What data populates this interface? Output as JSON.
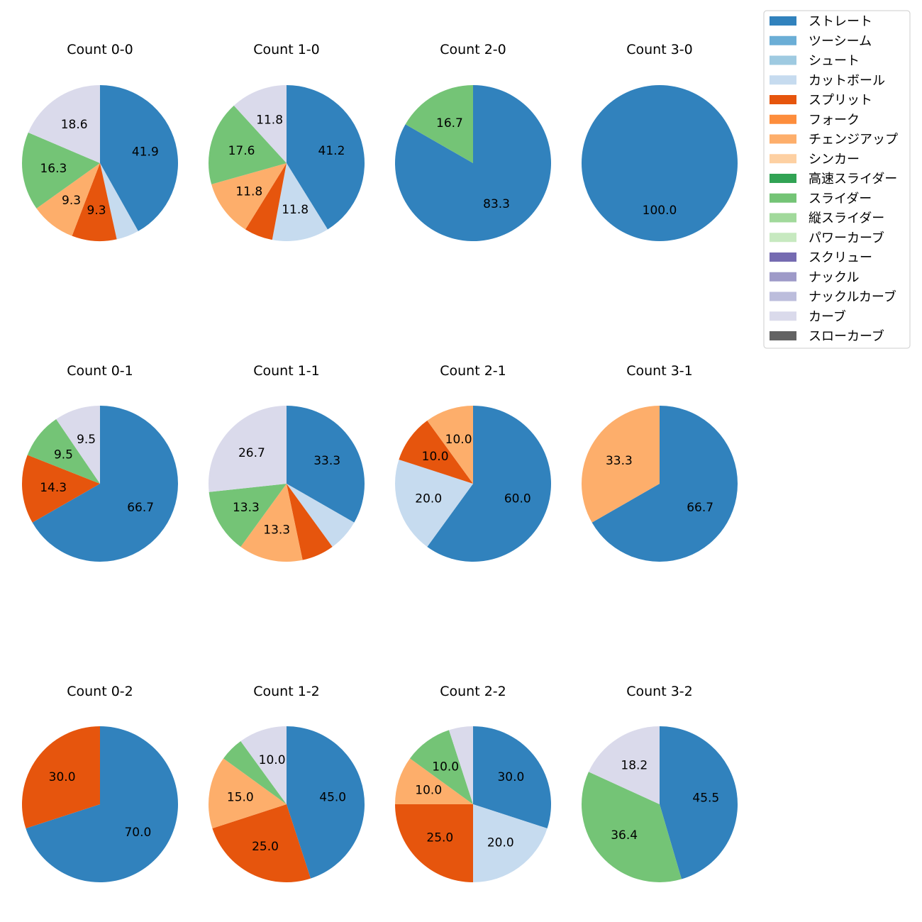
{
  "chart_data": {
    "type": "pie",
    "legend": {
      "location": "top-right",
      "items": [
        {
          "name": "ストレート",
          "color": "#3182bd"
        },
        {
          "name": "ツーシーム",
          "color": "#6baed6"
        },
        {
          "name": "シュート",
          "color": "#9ecae1"
        },
        {
          "name": "カットボール",
          "color": "#c6dbef"
        },
        {
          "name": "スプリット",
          "color": "#e6550d"
        },
        {
          "name": "フォーク",
          "color": "#fd8d3c"
        },
        {
          "name": "チェンジアップ",
          "color": "#fdae6b"
        },
        {
          "name": "シンカー",
          "color": "#fdd0a2"
        },
        {
          "name": "高速スライダー",
          "color": "#31a354"
        },
        {
          "name": "スライダー",
          "color": "#74c476"
        },
        {
          "name": "縦スライダー",
          "color": "#a1d99b"
        },
        {
          "name": "パワーカーブ",
          "color": "#c7e9c0"
        },
        {
          "name": "スクリュー",
          "color": "#756bb1"
        },
        {
          "name": "ナックル",
          "color": "#9e9ac8"
        },
        {
          "name": "ナックルカーブ",
          "color": "#bcbddc"
        },
        {
          "name": "カーブ",
          "color": "#dadaeb"
        },
        {
          "name": "スローカーブ",
          "color": "#636363"
        }
      ]
    },
    "pies": [
      {
        "title": "Count 0-0",
        "slices": [
          {
            "pitch": "ストレート",
            "value": 41.9,
            "label": "41.9"
          },
          {
            "pitch": "カットボール",
            "value": 4.7,
            "label": ""
          },
          {
            "pitch": "スプリット",
            "value": 9.3,
            "label": "9.3"
          },
          {
            "pitch": "チェンジアップ",
            "value": 9.3,
            "label": "9.3"
          },
          {
            "pitch": "スライダー",
            "value": 16.3,
            "label": "16.3"
          },
          {
            "pitch": "カーブ",
            "value": 18.6,
            "label": "18.6"
          }
        ]
      },
      {
        "title": "Count 1-0",
        "slices": [
          {
            "pitch": "ストレート",
            "value": 41.2,
            "label": "41.2"
          },
          {
            "pitch": "カットボール",
            "value": 11.8,
            "label": "11.8"
          },
          {
            "pitch": "スプリット",
            "value": 5.9,
            "label": ""
          },
          {
            "pitch": "チェンジアップ",
            "value": 11.8,
            "label": "11.8"
          },
          {
            "pitch": "スライダー",
            "value": 17.6,
            "label": "17.6"
          },
          {
            "pitch": "カーブ",
            "value": 11.8,
            "label": "11.8"
          }
        ]
      },
      {
        "title": "Count 2-0",
        "slices": [
          {
            "pitch": "ストレート",
            "value": 83.3,
            "label": "83.3"
          },
          {
            "pitch": "スライダー",
            "value": 16.7,
            "label": "16.7"
          }
        ]
      },
      {
        "title": "Count 3-0",
        "slices": [
          {
            "pitch": "ストレート",
            "value": 100.0,
            "label": "100.0"
          }
        ]
      },
      {
        "title": "Count 0-1",
        "slices": [
          {
            "pitch": "ストレート",
            "value": 66.7,
            "label": "66.7"
          },
          {
            "pitch": "スプリット",
            "value": 14.3,
            "label": "14.3"
          },
          {
            "pitch": "スライダー",
            "value": 9.5,
            "label": "9.5"
          },
          {
            "pitch": "カーブ",
            "value": 9.5,
            "label": "9.5"
          }
        ]
      },
      {
        "title": "Count 1-1",
        "slices": [
          {
            "pitch": "ストレート",
            "value": 33.3,
            "label": "33.3"
          },
          {
            "pitch": "カットボール",
            "value": 6.7,
            "label": ""
          },
          {
            "pitch": "スプリット",
            "value": 6.7,
            "label": ""
          },
          {
            "pitch": "チェンジアップ",
            "value": 13.3,
            "label": "13.3"
          },
          {
            "pitch": "スライダー",
            "value": 13.3,
            "label": "13.3"
          },
          {
            "pitch": "カーブ",
            "value": 26.7,
            "label": "26.7"
          }
        ]
      },
      {
        "title": "Count 2-1",
        "slices": [
          {
            "pitch": "ストレート",
            "value": 60.0,
            "label": "60.0"
          },
          {
            "pitch": "カットボール",
            "value": 20.0,
            "label": "20.0"
          },
          {
            "pitch": "スプリット",
            "value": 10.0,
            "label": "10.0"
          },
          {
            "pitch": "チェンジアップ",
            "value": 10.0,
            "label": "10.0"
          }
        ]
      },
      {
        "title": "Count 3-1",
        "slices": [
          {
            "pitch": "ストレート",
            "value": 66.7,
            "label": "66.7"
          },
          {
            "pitch": "チェンジアップ",
            "value": 33.3,
            "label": "33.3"
          }
        ]
      },
      {
        "title": "Count 0-2",
        "slices": [
          {
            "pitch": "ストレート",
            "value": 70.0,
            "label": "70.0"
          },
          {
            "pitch": "スプリット",
            "value": 30.0,
            "label": "30.0"
          }
        ]
      },
      {
        "title": "Count 1-2",
        "slices": [
          {
            "pitch": "ストレート",
            "value": 45.0,
            "label": "45.0"
          },
          {
            "pitch": "スプリット",
            "value": 25.0,
            "label": "25.0"
          },
          {
            "pitch": "チェンジアップ",
            "value": 15.0,
            "label": "15.0"
          },
          {
            "pitch": "スライダー",
            "value": 5.0,
            "label": ""
          },
          {
            "pitch": "カーブ",
            "value": 10.0,
            "label": "10.0"
          }
        ]
      },
      {
        "title": "Count 2-2",
        "slices": [
          {
            "pitch": "ストレート",
            "value": 30.0,
            "label": "30.0"
          },
          {
            "pitch": "カットボール",
            "value": 20.0,
            "label": "20.0"
          },
          {
            "pitch": "スプリット",
            "value": 25.0,
            "label": "25.0"
          },
          {
            "pitch": "チェンジアップ",
            "value": 10.0,
            "label": "10.0"
          },
          {
            "pitch": "スライダー",
            "value": 10.0,
            "label": "10.0"
          },
          {
            "pitch": "カーブ",
            "value": 5.0,
            "label": ""
          }
        ]
      },
      {
        "title": "Count 3-2",
        "slices": [
          {
            "pitch": "ストレート",
            "value": 45.5,
            "label": "45.5"
          },
          {
            "pitch": "スライダー",
            "value": 36.4,
            "label": "36.4"
          },
          {
            "pitch": "カーブ",
            "value": 18.2,
            "label": "18.2"
          }
        ]
      }
    ]
  }
}
